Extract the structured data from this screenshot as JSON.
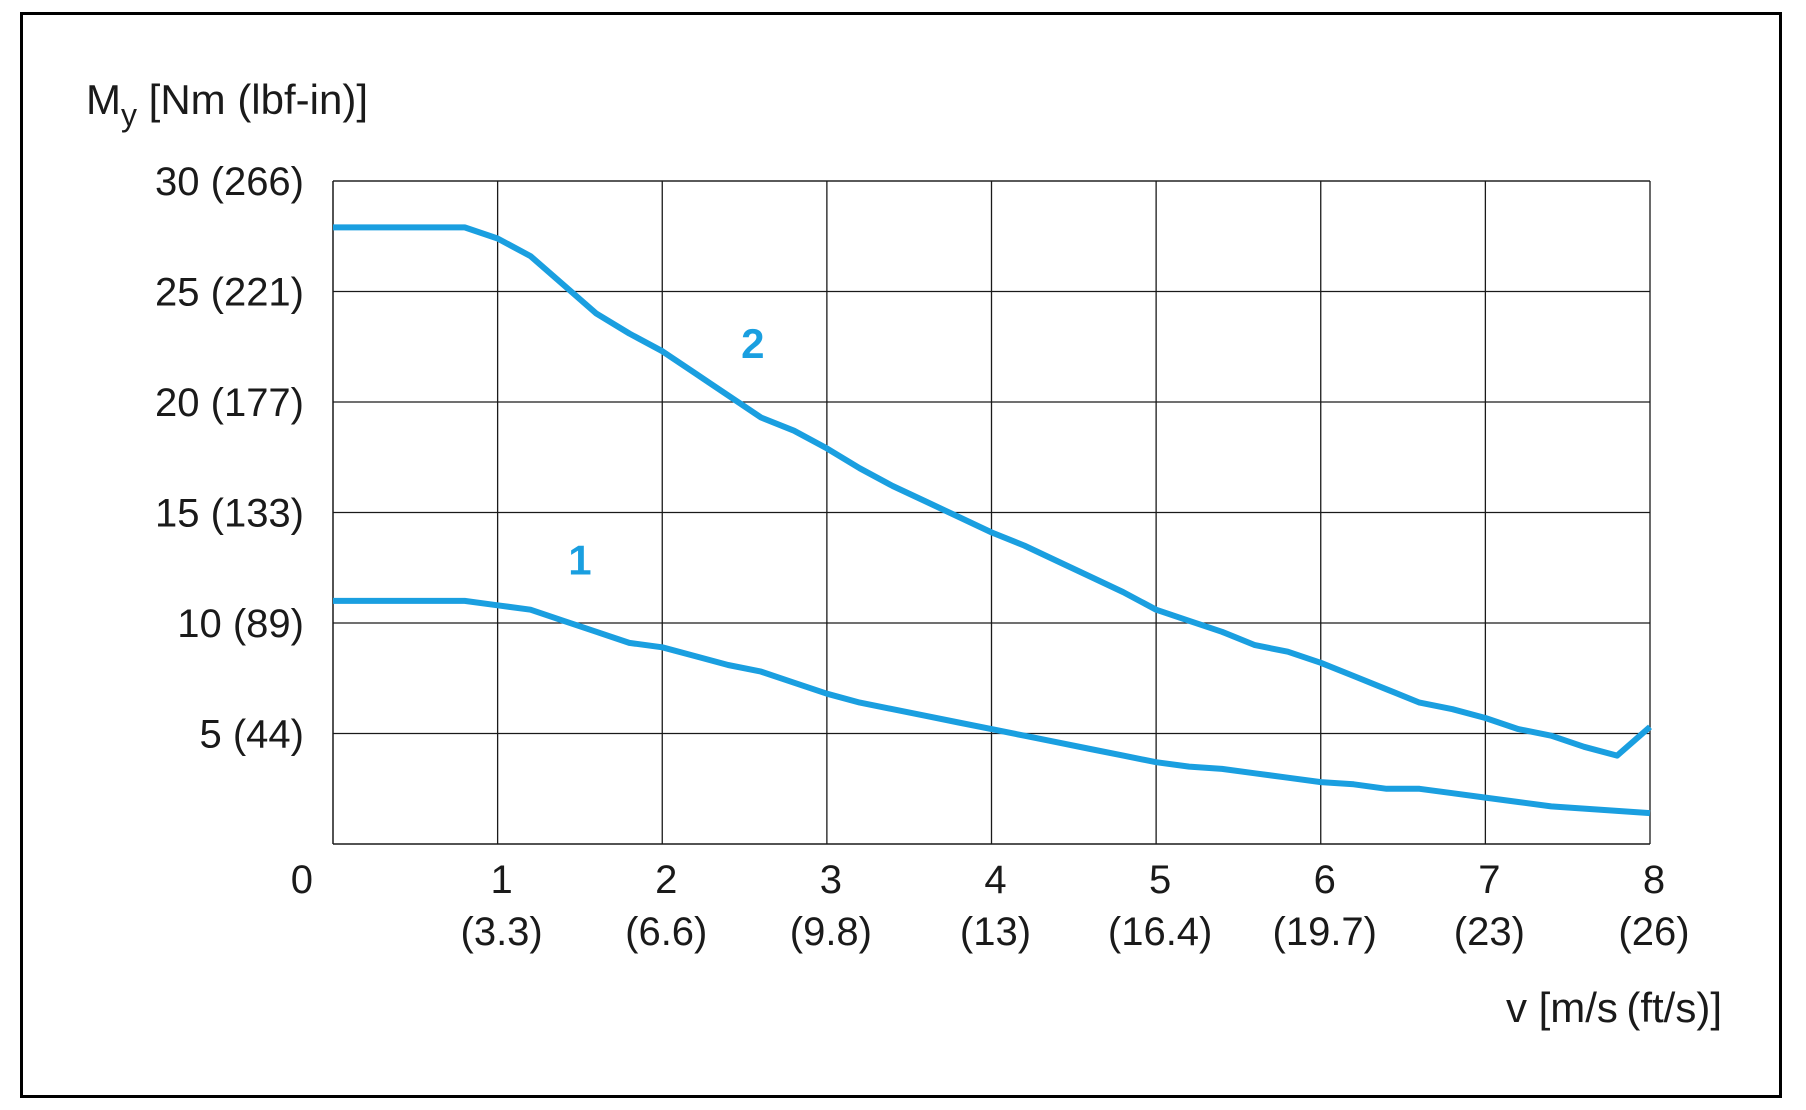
{
  "chart_data": {
    "type": "line",
    "ylabel": {
      "main": "M",
      "sub": "y",
      "rest": " [Nm (lbf-in)]"
    },
    "xlabel": "v [m/s (ft/s)]",
    "ylim": [
      0,
      30
    ],
    "xlim": [
      0,
      8
    ],
    "grid": true,
    "y_ticks": [
      {
        "value": 30,
        "label": "30 (266)"
      },
      {
        "value": 25,
        "label": "25 (221)"
      },
      {
        "value": 20,
        "label": "20 (177)"
      },
      {
        "value": 15,
        "label": "15 (133)"
      },
      {
        "value": 10,
        "label": "10 (89)"
      },
      {
        "value": 5,
        "label": "5 (44)"
      }
    ],
    "origin_label": "0",
    "x_ticks": [
      {
        "value": 1,
        "label": "1",
        "sublabel": "(3.3)"
      },
      {
        "value": 2,
        "label": "2",
        "sublabel": "(6.6)"
      },
      {
        "value": 3,
        "label": "3",
        "sublabel": "(9.8)"
      },
      {
        "value": 4,
        "label": "4",
        "sublabel": "(13)"
      },
      {
        "value": 5,
        "label": "5",
        "sublabel": "(16.4)"
      },
      {
        "value": 6,
        "label": "6",
        "sublabel": "(19.7)"
      },
      {
        "value": 7,
        "label": "7",
        "sublabel": "(23)"
      },
      {
        "value": 8,
        "label": "8",
        "sublabel": "(26)"
      }
    ],
    "line_color": "#1a9fe0",
    "series": [
      {
        "name": "1",
        "label_at": {
          "x": 1.5,
          "y": 12.2
        },
        "x": [
          0,
          0.8,
          1.0,
          1.2,
          1.4,
          1.6,
          1.8,
          2.0,
          2.2,
          2.4,
          2.6,
          2.8,
          3.0,
          3.2,
          3.4,
          3.6,
          3.8,
          4.0,
          4.2,
          4.4,
          4.6,
          4.8,
          5.0,
          5.2,
          5.4,
          5.6,
          5.8,
          6.0,
          6.2,
          6.4,
          6.6,
          6.8,
          7.0,
          7.2,
          7.4,
          7.6,
          7.8,
          8.0
        ],
        "y": [
          11.0,
          11.0,
          10.8,
          10.6,
          10.1,
          9.6,
          9.1,
          8.9,
          8.5,
          8.1,
          7.8,
          7.3,
          6.8,
          6.4,
          6.1,
          5.8,
          5.5,
          5.2,
          4.9,
          4.6,
          4.3,
          4.0,
          3.7,
          3.5,
          3.4,
          3.2,
          3.0,
          2.8,
          2.7,
          2.5,
          2.5,
          2.3,
          2.1,
          1.9,
          1.7,
          1.6,
          1.5,
          1.4
        ]
      },
      {
        "name": "2",
        "label_at": {
          "x": 2.55,
          "y": 22.0
        },
        "x": [
          0,
          0.8,
          1.0,
          1.2,
          1.4,
          1.6,
          1.8,
          2.0,
          2.2,
          2.4,
          2.6,
          2.8,
          3.0,
          3.2,
          3.4,
          3.6,
          3.8,
          4.0,
          4.2,
          4.4,
          4.6,
          4.8,
          5.0,
          5.2,
          5.4,
          5.6,
          5.8,
          6.0,
          6.2,
          6.4,
          6.6,
          6.8,
          7.0,
          7.2,
          7.4,
          7.6,
          7.8,
          8.0
        ],
        "y": [
          27.9,
          27.9,
          27.4,
          26.6,
          25.3,
          24.0,
          23.1,
          22.3,
          21.3,
          20.3,
          19.3,
          18.7,
          17.9,
          17.0,
          16.2,
          15.5,
          14.8,
          14.1,
          13.5,
          12.8,
          12.1,
          11.4,
          10.6,
          10.1,
          9.6,
          9.0,
          8.7,
          8.2,
          7.6,
          7.0,
          6.4,
          6.1,
          5.7,
          5.2,
          4.9,
          4.4,
          4.0,
          5.3
        ]
      }
    ]
  }
}
